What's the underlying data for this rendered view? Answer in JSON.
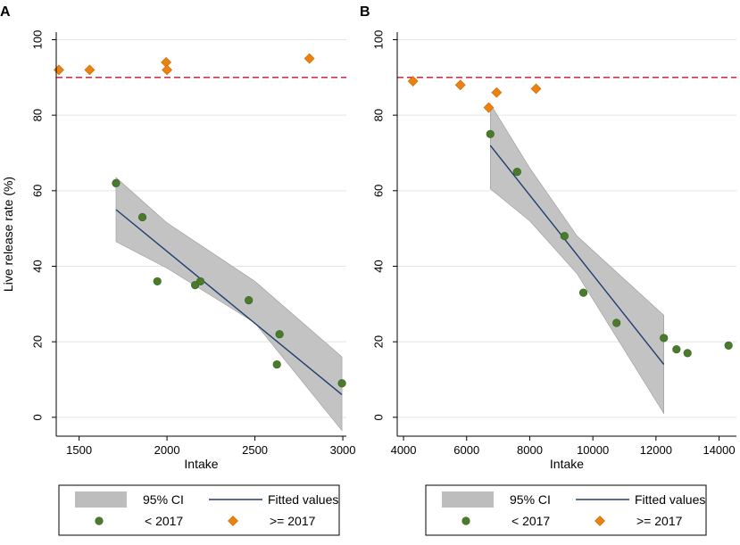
{
  "chart_data": [
    {
      "type": "scatter",
      "panel": "A",
      "xlabel": "Intake",
      "ylabel": "Live release rate (%)",
      "xlim": [
        1370,
        3020
      ],
      "ylim": [
        -5,
        102
      ],
      "xticks": [
        1500,
        2000,
        2500,
        3000
      ],
      "yticks": [
        0,
        20,
        40,
        60,
        80,
        100
      ],
      "reference_line": 90,
      "series": [
        {
          "name": "< 2017",
          "points": [
            [
              1710,
              62
            ],
            [
              1860,
              53
            ],
            [
              1945,
              36
            ],
            [
              2160,
              35
            ],
            [
              2190,
              36
            ],
            [
              2465,
              31
            ],
            [
              2640,
              22
            ],
            [
              2625,
              14
            ],
            [
              2995,
              9
            ]
          ]
        },
        {
          "name": ">= 2017",
          "points": [
            [
              1385,
              92
            ],
            [
              1560,
              92
            ],
            [
              1995,
              94
            ],
            [
              2000,
              92
            ],
            [
              2810,
              95
            ]
          ]
        }
      ],
      "fit": {
        "name": "Fitted values",
        "x": [
          1710,
          2995
        ],
        "y": [
          55,
          6
        ]
      },
      "ci": {
        "name": "95% CI",
        "x": [
          1710,
          2000,
          2500,
          2995
        ],
        "lower": [
          46.5,
          39.5,
          25,
          -3.5
        ],
        "upper": [
          63.5,
          51.5,
          36,
          16
        ]
      },
      "legend": {
        "ci": "95% CI",
        "fit": "Fitted values",
        "s1": "< 2017",
        "s2": ">= 2017"
      }
    },
    {
      "type": "scatter",
      "panel": "B",
      "xlabel": "Intake",
      "ylabel": "",
      "xlim": [
        3800,
        14550
      ],
      "ylim": [
        -5,
        102
      ],
      "xticks": [
        4000,
        6000,
        8000,
        10000,
        12000,
        14000
      ],
      "yticks": [
        0,
        20,
        40,
        60,
        80,
        100
      ],
      "reference_line": 90,
      "series": [
        {
          "name": "< 2017",
          "points": [
            [
              6750,
              75
            ],
            [
              7600,
              65
            ],
            [
              9100,
              48
            ],
            [
              9700,
              33
            ],
            [
              10750,
              25
            ],
            [
              12250,
              21
            ],
            [
              12650,
              18
            ],
            [
              13000,
              17
            ],
            [
              14300,
              19
            ]
          ]
        },
        {
          "name": ">= 2017",
          "points": [
            [
              4300,
              89
            ],
            [
              5800,
              88
            ],
            [
              6700,
              82
            ],
            [
              6950,
              86
            ],
            [
              8200,
              87
            ]
          ]
        }
      ],
      "fit": {
        "name": "Fitted values",
        "x": [
          6750,
          12250
        ],
        "y": [
          72,
          14
        ]
      },
      "ci": {
        "name": "95% CI",
        "x": [
          6750,
          8000,
          9500,
          12250
        ],
        "lower": [
          60.5,
          52,
          38,
          1
        ],
        "upper": [
          83,
          66,
          48,
          27
        ]
      },
      "legend": {
        "ci": "95% CI",
        "fit": "Fitted values",
        "s1": "< 2017",
        "s2": ">= 2017"
      }
    }
  ]
}
